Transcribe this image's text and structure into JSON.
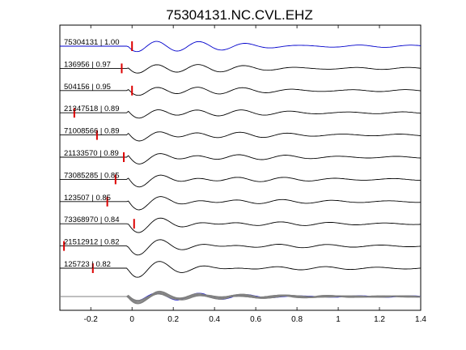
{
  "chart_data": {
    "type": "line",
    "title": "75304131.NC.CVL.EHZ",
    "xlabel": "",
    "ylabel": "",
    "xlim": [
      -0.35,
      1.4
    ],
    "xticks": [
      -0.2,
      0,
      0.2,
      0.4,
      0.6,
      0.8,
      1,
      1.2,
      1.4
    ],
    "xtick_labels": [
      "-0.2",
      "0",
      "0.2",
      "0.4",
      "0.6",
      "0.8",
      "1",
      "1.2",
      "1.4"
    ],
    "grid": false,
    "colors": {
      "reference": "#0000cc",
      "trace": "#000000",
      "marker": "#dd0000",
      "stack": "#808080"
    },
    "traces": [
      {
        "label": "75304131 | 1.00",
        "event_id": "75304131",
        "correlation": 1.0,
        "pick_time": 0.0,
        "color": "blue"
      },
      {
        "label": "136956 | 0.97",
        "event_id": "136956",
        "correlation": 0.97,
        "pick_time": -0.05,
        "color": "black"
      },
      {
        "label": "504156 | 0.95",
        "event_id": "504156",
        "correlation": 0.95,
        "pick_time": 0.0,
        "color": "black"
      },
      {
        "label": "21347518 | 0.89",
        "event_id": "21347518",
        "correlation": 0.89,
        "pick_time": -0.28,
        "color": "black"
      },
      {
        "label": "71008566 | 0.89",
        "event_id": "71008566",
        "correlation": 0.89,
        "pick_time": -0.17,
        "color": "black"
      },
      {
        "label": "21133570 | 0.89",
        "event_id": "21133570",
        "correlation": 0.89,
        "pick_time": -0.04,
        "color": "black"
      },
      {
        "label": "73085285 | 0.85",
        "event_id": "73085285",
        "correlation": 0.85,
        "pick_time": -0.08,
        "color": "black"
      },
      {
        "label": "123507 | 0.85",
        "event_id": "123507",
        "correlation": 0.85,
        "pick_time": -0.12,
        "color": "black"
      },
      {
        "label": "73368970 | 0.84",
        "event_id": "73368970",
        "correlation": 0.84,
        "pick_time": 0.01,
        "color": "black"
      },
      {
        "label": "21512912 | 0.82",
        "event_id": "21512912",
        "correlation": 0.82,
        "pick_time": -0.33,
        "color": "black"
      },
      {
        "label": "125723 | 0.82",
        "event_id": "125723",
        "correlation": 0.82,
        "pick_time": -0.19,
        "color": "black"
      }
    ],
    "stack": {
      "description": "overlay of all aligned traces",
      "reference_color": "blue",
      "others_color": "gray"
    }
  }
}
